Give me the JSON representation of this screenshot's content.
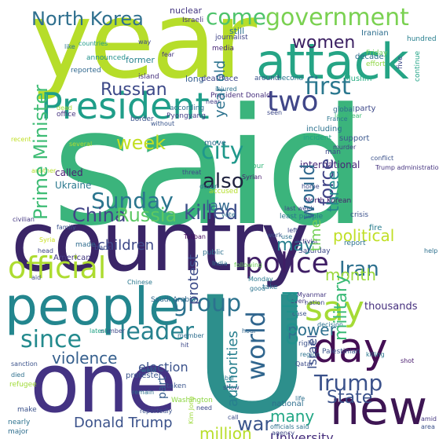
{
  "words": [
    {
      "text": "said",
      "color": "#3bb47c"
    },
    {
      "text": "year",
      "color": "#b6dd2a"
    },
    {
      "text": "country",
      "color": "#3a2567"
    },
    {
      "text": "one",
      "color": "#443383"
    },
    {
      "text": "U",
      "color": "#2d8f8c"
    },
    {
      "text": "attack",
      "color": "#25a485"
    },
    {
      "text": "people",
      "color": "#23868e"
    },
    {
      "text": "new",
      "color": "#3d1553"
    },
    {
      "text": "President",
      "color": "#1f9e89"
    },
    {
      "text": "government",
      "color": "#7ad151"
    },
    {
      "text": "day",
      "color": "#440f54"
    },
    {
      "text": "say",
      "color": "#a5db36"
    },
    {
      "text": "North Korea",
      "color": "#2e6f8e"
    },
    {
      "text": "come",
      "color": "#4ec36b"
    },
    {
      "text": "women",
      "color": "#3b1f62"
    },
    {
      "text": "two",
      "color": "#404688"
    },
    {
      "text": "first",
      "color": "#2a778e"
    },
    {
      "text": "Prime Minister",
      "color": "#3dbc74"
    },
    {
      "text": "Russian",
      "color": "#3e4a89"
    },
    {
      "text": "police",
      "color": "#3f1e65"
    },
    {
      "text": "official",
      "color": "#addc30"
    },
    {
      "text": "since",
      "color": "#238a8d"
    },
    {
      "text": "leader",
      "color": "#26818e"
    },
    {
      "text": "week",
      "color": "#c2df23"
    },
    {
      "text": "city",
      "color": "#1f988b"
    },
    {
      "text": "Sunday",
      "color": "#2b758e"
    },
    {
      "text": "also",
      "color": "#20233f"
    },
    {
      "text": "killed",
      "color": "#3d4e8a"
    },
    {
      "text": "China",
      "color": "#414487"
    },
    {
      "text": "Russia",
      "color": "#5cc863"
    },
    {
      "text": "world",
      "color": "#31668e"
    },
    {
      "text": "force",
      "color": "#404387"
    },
    {
      "text": "military",
      "color": "#3aba76"
    },
    {
      "text": "would",
      "color": "#30698e"
    },
    {
      "text": "could",
      "color": "#21918c"
    },
    {
      "text": "group",
      "color": "#2c728e"
    },
    {
      "text": "Trump",
      "color": "#3b528b"
    },
    {
      "text": "State",
      "color": "#3b528b"
    },
    {
      "text": "war",
      "color": "#3a548c"
    },
    {
      "text": "many",
      "color": "#22a785"
    },
    {
      "text": "power",
      "color": "#2d708e"
    },
    {
      "text": "violence",
      "color": "#355f8d"
    },
    {
      "text": "election",
      "color": "#3b528b"
    },
    {
      "text": "children",
      "color": "#3e4989"
    },
    {
      "text": "Iran",
      "color": "#2d708e"
    },
    {
      "text": "month",
      "color": "#9bd93c"
    },
    {
      "text": "political",
      "color": "#c0df25"
    },
    {
      "text": "three",
      "color": "#25848e"
    },
    {
      "text": "time",
      "color": "#73d056"
    },
    {
      "text": "may",
      "color": "#277f8e"
    },
    {
      "text": "law",
      "color": "#31688e"
    },
    {
      "text": "protest",
      "color": "#3e4c8a"
    },
    {
      "text": "Donald Trump",
      "color": "#3b528b"
    },
    {
      "text": "million",
      "color": "#b8de29"
    },
    {
      "text": "authorities",
      "color": "#277f8e"
    },
    {
      "text": "year old",
      "color": "#2c728e"
    },
    {
      "text": "Israel",
      "color": "#3c508b"
    },
    {
      "text": "part",
      "color": "#365c8d"
    },
    {
      "text": "University",
      "color": "#472f7d"
    },
    {
      "text": "thousands",
      "color": "#46307e"
    },
    {
      "text": "international",
      "color": "#482576"
    },
    {
      "text": "called",
      "color": "#481f70"
    },
    {
      "text": "Ukraine",
      "color": "#2a788e"
    },
    {
      "text": "nuclear",
      "color": "#453781"
    },
    {
      "text": "journalist",
      "color": "#414487"
    },
    {
      "text": "Israeli",
      "color": "#46337f"
    },
    {
      "text": "Iranian",
      "color": "#2e6e8e"
    },
    {
      "text": "decade",
      "color": "#2e6e8e"
    },
    {
      "text": "hundred",
      "color": "#277f8e"
    },
    {
      "text": "five",
      "color": "#3e4a89"
    },
    {
      "text": "Friday",
      "color": "#6ccd5a"
    },
    {
      "text": "effort",
      "color": "#8fd744"
    },
    {
      "text": "Muslim",
      "color": "#25ac82"
    },
    {
      "text": "continue",
      "color": "#20a386"
    },
    {
      "text": "former",
      "color": "#26828e"
    },
    {
      "text": "fear",
      "color": "#453882"
    },
    {
      "text": "still",
      "color": "#2c718e"
    },
    {
      "text": "island",
      "color": "#46307e"
    },
    {
      "text": "long",
      "color": "#355f8d"
    },
    {
      "text": "death",
      "color": "#404688"
    },
    {
      "text": "face",
      "color": "#3f4889"
    },
    {
      "text": "around",
      "color": "#3b528b"
    },
    {
      "text": "second",
      "color": "#2b758e"
    },
    {
      "text": "reported",
      "color": "#31688e"
    },
    {
      "text": "announced",
      "color": "#21918c"
    },
    {
      "text": "like",
      "color": "#2a788e"
    },
    {
      "text": "countries",
      "color": "#1f9a8a"
    },
    {
      "text": "way",
      "color": "#3e4a89"
    },
    {
      "text": "media",
      "color": "#482677"
    },
    {
      "text": "injured",
      "color": "#2c718e"
    },
    {
      "text": "President Donald",
      "color": "#472f7d"
    },
    {
      "text": "near",
      "color": "#433e85"
    },
    {
      "text": "according",
      "color": "#2e6f8e"
    },
    {
      "text": "Pyongyang",
      "color": "#433e85"
    },
    {
      "text": "global",
      "color": "#2f6b8e"
    },
    {
      "text": "party",
      "color": "#3e4989"
    },
    {
      "text": "seen",
      "color": "#3e4a89"
    },
    {
      "text": "last year",
      "color": "#3dbc74"
    },
    {
      "text": "border",
      "color": "#3b528b"
    },
    {
      "text": "office",
      "color": "#46337f"
    },
    {
      "text": "dead",
      "color": "#a2da37"
    },
    {
      "text": "without",
      "color": "#39558c"
    },
    {
      "text": "including",
      "color": "#2c728e"
    },
    {
      "text": "recent",
      "color": "#c0df25"
    },
    {
      "text": "move",
      "color": "#2e6e8e"
    },
    {
      "text": "incident",
      "color": "#20a386"
    },
    {
      "text": "support",
      "color": "#39568c"
    },
    {
      "text": "murder",
      "color": "#433e85"
    },
    {
      "text": "conflict",
      "color": "#3b528b"
    },
    {
      "text": "Trump administration",
      "color": "#463480"
    },
    {
      "text": "several",
      "color": "#b0dd2f"
    },
    {
      "text": "another",
      "color": "#b5de2b"
    },
    {
      "text": "Syrian",
      "color": "#481c6e"
    },
    {
      "text": "four",
      "color": "#35b779"
    },
    {
      "text": "threat",
      "color": "#3e4989"
    },
    {
      "text": "dozen",
      "color": "#2e6e8e"
    },
    {
      "text": "home",
      "color": "#3e4989"
    },
    {
      "text": "North Korean",
      "color": "#481a6c"
    },
    {
      "text": "vote",
      "color": "#2c718e"
    },
    {
      "text": "accused",
      "color": "#b5de2b"
    },
    {
      "text": "least people",
      "color": "#2a778e"
    },
    {
      "text": "last week",
      "color": "#3f4889"
    },
    {
      "text": "crisis",
      "color": "#3b518b"
    },
    {
      "text": "fire",
      "color": "#287c8e"
    },
    {
      "text": "report",
      "color": "#2c718e"
    },
    {
      "text": "Saturday",
      "color": "#3e4989"
    },
    {
      "text": "activist",
      "color": "#463480"
    },
    {
      "text": "left",
      "color": "#3e4a89"
    },
    {
      "text": "work",
      "color": "#3a548c"
    },
    {
      "text": "use",
      "color": "#2c718e"
    },
    {
      "text": "Taliban",
      "color": "#460b5e"
    },
    {
      "text": "public",
      "color": "#2d708e"
    },
    {
      "text": "India",
      "color": "#2c728e"
    },
    {
      "text": "following",
      "color": "#6ece58"
    },
    {
      "text": "help",
      "color": "#2d708e"
    },
    {
      "text": "family",
      "color": "#3b528b"
    },
    {
      "text": "civilian",
      "color": "#453882"
    },
    {
      "text": "Syria",
      "color": "#c8e020"
    },
    {
      "text": "head",
      "color": "#3f4788"
    },
    {
      "text": "made",
      "color": "#2f6c8e"
    },
    {
      "text": "back",
      "color": "#3d4d8a"
    },
    {
      "text": "American",
      "color": "#443983"
    },
    {
      "text": "aid",
      "color": "#3e4a89"
    },
    {
      "text": "Chinese",
      "color": "#2a778e"
    },
    {
      "text": "Monday",
      "color": "#2a788e"
    },
    {
      "text": "Saudi Arabia",
      "color": "#31678e"
    },
    {
      "text": "good",
      "color": "#2b748e"
    },
    {
      "text": "take",
      "color": "#2d708e"
    },
    {
      "text": "Myanmar",
      "color": "#453882"
    },
    {
      "text": "even",
      "color": "#453882"
    },
    {
      "text": "nation",
      "color": "#3f4788"
    },
    {
      "text": "case",
      "color": "#3b528b"
    },
    {
      "text": "decision",
      "color": "#2c728e"
    },
    {
      "text": "right",
      "color": "#3b528b"
    },
    {
      "text": "region",
      "color": "#2c728e"
    },
    {
      "text": "Palestinian",
      "color": "#3a548c"
    },
    {
      "text": "killing",
      "color": "#2a768e"
    },
    {
      "text": "number",
      "color": "#3e4a89"
    },
    {
      "text": "latest",
      "color": "#20a386"
    },
    {
      "text": "hour",
      "color": "#31678e"
    },
    {
      "text": "member",
      "color": "#2e6e8e"
    },
    {
      "text": "hit",
      "color": "#3e4989"
    },
    {
      "text": "protester",
      "color": "#3a548c"
    },
    {
      "text": "Qatar",
      "color": "#3e4c8a"
    },
    {
      "text": "shot",
      "color": "#481a6c"
    },
    {
      "text": "sanction",
      "color": "#3b528b"
    },
    {
      "text": "died",
      "color": "#2e6f8e"
    },
    {
      "text": "refugee",
      "color": "#a0da39"
    },
    {
      "text": "want",
      "color": "#2e6e8e"
    },
    {
      "text": "taken",
      "color": "#3a548c"
    },
    {
      "text": "remain",
      "color": "#2d708e"
    },
    {
      "text": "Kim Jong",
      "color": "#9dd93b"
    },
    {
      "text": "reportedly",
      "color": "#3b528b"
    },
    {
      "text": "Washington",
      "color": "#8ed645"
    },
    {
      "text": "bill",
      "color": "#2a768e"
    },
    {
      "text": "show",
      "color": "#3e4c8a"
    },
    {
      "text": "national",
      "color": "#2e6e8e"
    },
    {
      "text": "life",
      "color": "#2d708e"
    },
    {
      "text": "need",
      "color": "#3e4c8a"
    },
    {
      "text": "call",
      "color": "#3d4d8a"
    },
    {
      "text": "officials said",
      "color": "#2c728e"
    },
    {
      "text": "agency",
      "color": "#3e4989"
    },
    {
      "text": "amid",
      "color": "#453882"
    },
    {
      "text": "area",
      "color": "#3b528b"
    },
    {
      "text": "nearly",
      "color": "#2c728e"
    },
    {
      "text": "major",
      "color": "#2e6e8e"
    },
    {
      "text": "make",
      "color": "#3b528b"
    },
    {
      "text": "France",
      "color": "#2a768e"
    },
    {
      "text": "man",
      "color": "#3e4989"
    }
  ]
}
